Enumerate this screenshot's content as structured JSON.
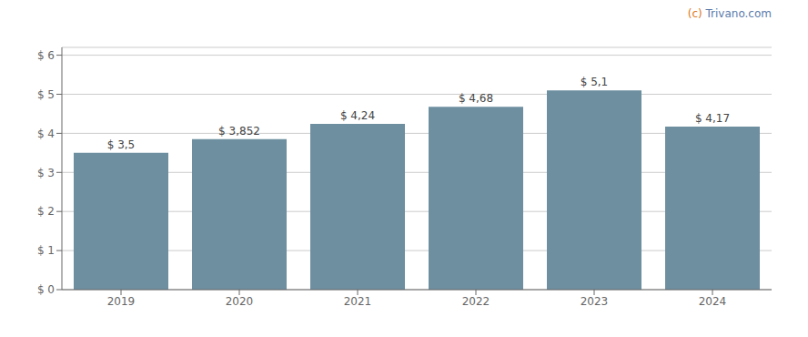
{
  "chart_data": {
    "type": "bar",
    "categories": [
      "2019",
      "2020",
      "2021",
      "2022",
      "2023",
      "2024"
    ],
    "values": [
      3.5,
      3.852,
      4.24,
      4.68,
      5.1,
      4.17
    ],
    "value_labels": [
      "$ 3,5",
      "$ 3,852",
      "$ 4,24",
      "$ 4,68",
      "$ 5,1",
      "$ 4,17"
    ],
    "data_labels": true,
    "color": "#6d8fa0",
    "ylim": [
      0,
      6.2
    ],
    "yticks": [
      {
        "value": 0,
        "label": "$ 0"
      },
      {
        "value": 1,
        "label": "$ 1"
      },
      {
        "value": 2,
        "label": "$ 2"
      },
      {
        "value": 3,
        "label": "$ 3"
      },
      {
        "value": 4,
        "label": "$ 4"
      },
      {
        "value": 5,
        "label": "$ 5"
      },
      {
        "value": 6,
        "label": "$ 6"
      }
    ],
    "grid": true,
    "annotations": [
      {
        "text": "(c)",
        "color": "#e07820"
      },
      {
        "text": " Trivano.com",
        "color": "#5a7aaa"
      }
    ]
  }
}
